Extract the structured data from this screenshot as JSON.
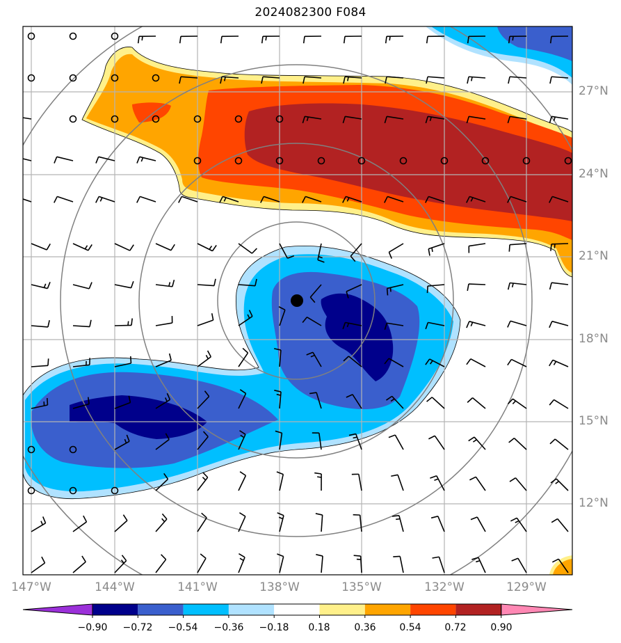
{
  "title": "2024082300 F084",
  "lon_labels": [
    "147°W",
    "144°W",
    "141°W",
    "138°W",
    "135°W",
    "132°W",
    "129°W"
  ],
  "lat_labels": [
    "27°N",
    "24°N",
    "21°N",
    "18°N",
    "15°N",
    "12°N"
  ],
  "colorbar": {
    "tick_labels": [
      "−0.90",
      "−0.72",
      "−0.54",
      "−0.36",
      "−0.18",
      "0.18",
      "0.36",
      "0.54",
      "0.72",
      "0.90"
    ],
    "colors": [
      "#9b30d9",
      "#00008b",
      "#3a5fcd",
      "#00bfff",
      "#b0e2ff",
      "#ffffff",
      "#fff08a",
      "#ffa500",
      "#ff4500",
      "#b22222",
      "#ff88b4"
    ]
  },
  "colors": {
    "grid": "#b4b4b4",
    "range_rings": "#808080",
    "frame": "#000000",
    "barb": "#000000",
    "center_marker": "#000000"
  },
  "storm_center": {
    "lon": -137.4,
    "lat": 19.4
  }
}
